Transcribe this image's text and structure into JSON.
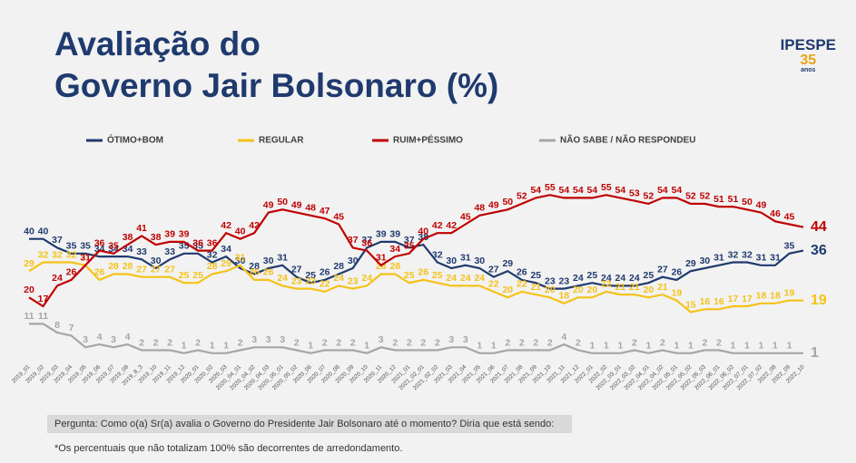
{
  "header": {
    "title_line1": "Avaliação do",
    "title_line2": "Governo Jair Bolsonaro (%)"
  },
  "logo": {
    "name": "IPESPE",
    "years": "35",
    "sub": "anos"
  },
  "chart_data": {
    "type": "line",
    "categories": [
      "2019_01",
      "2019_02",
      "2019_03",
      "2019_04",
      "2019_05",
      "2019_06",
      "2019_07",
      "2019_08",
      "2019_8_3",
      "2019_10",
      "2019_11",
      "2019_12",
      "2020_01",
      "2020_02",
      "2020_03",
      "2020_04_01",
      "2020_04_02",
      "2020_04_03",
      "2020_05_01",
      "2020_05_02",
      "2020_06",
      "2020_07",
      "2020_08",
      "2020_09",
      "2020_10",
      "2020_11",
      "2020_12",
      "2021_01",
      "2021_02_01",
      "2021_02_02",
      "2021_03",
      "2021_04",
      "2021_05",
      "2021_06",
      "2021_07",
      "2021_08",
      "2021_09",
      "2021_10",
      "2021_11",
      "2021_12",
      "2022_01",
      "2022_02",
      "2022_03_01",
      "2022_03_02",
      "2022_04_01",
      "2022_04_02",
      "2022_05_01",
      "2022_05_02",
      "2022_05_03",
      "2022_06_01",
      "2022_06_02",
      "2022_07_01",
      "2022_07_02",
      "2022_08",
      "2022_09",
      "2022_10"
    ],
    "ylim": [
      0,
      60
    ],
    "series": [
      {
        "name": "ÓTIMO+BOM",
        "color": "#1f3a6e",
        "values": [
          40,
          40,
          37,
          35,
          35,
          34,
          34,
          34,
          33,
          30,
          33,
          35,
          35,
          32,
          34,
          30,
          28,
          30,
          31,
          27,
          25,
          26,
          28,
          30,
          37,
          39,
          39,
          37,
          38,
          32,
          30,
          31,
          30,
          27,
          29,
          26,
          25,
          23,
          23,
          24,
          25,
          24,
          24,
          24,
          25,
          27,
          26,
          29,
          30,
          31,
          32,
          32,
          31,
          31,
          35,
          36
        ]
      },
      {
        "name": "REGULAR",
        "color": "#f5c218",
        "values": [
          29,
          32,
          32,
          32,
          31,
          26,
          28,
          28,
          27,
          27,
          27,
          25,
          25,
          28,
          29,
          31,
          26,
          26,
          24,
          23,
          23,
          22,
          24,
          23,
          24,
          28,
          28,
          25,
          26,
          25,
          24,
          24,
          24,
          22,
          20,
          22,
          21,
          20,
          18,
          20,
          20,
          22,
          21,
          21,
          20,
          21,
          19,
          15,
          16,
          16,
          17,
          17,
          18,
          18,
          19,
          19
        ]
      },
      {
        "name": "RUIM+PÉSSIMO",
        "color": "#c00000",
        "values": [
          20,
          17,
          24,
          26,
          31,
          36,
          35,
          38,
          41,
          38,
          39,
          39,
          36,
          36,
          42,
          40,
          42,
          49,
          50,
          49,
          48,
          47,
          45,
          37,
          36,
          31,
          34,
          35,
          40,
          42,
          42,
          45,
          48,
          49,
          50,
          52,
          54,
          55,
          54,
          54,
          54,
          55,
          54,
          53,
          52,
          54,
          54,
          52,
          52,
          51,
          51,
          50,
          49,
          46,
          45,
          44
        ]
      },
      {
        "name": "NÃO SABE / NÃO RESPONDEU",
        "color": "#a6a6a6",
        "values": [
          11,
          11,
          8,
          7,
          3,
          4,
          3,
          4,
          2,
          2,
          2,
          1,
          2,
          1,
          1,
          2,
          3,
          3,
          3,
          2,
          1,
          2,
          2,
          2,
          1,
          3,
          2,
          2,
          2,
          2,
          3,
          3,
          1,
          1,
          2,
          2,
          2,
          2,
          4,
          2,
          1,
          1,
          1,
          2,
          1,
          2,
          1,
          1,
          2,
          2,
          1,
          1,
          1,
          1,
          1,
          1
        ]
      }
    ]
  },
  "notes": {
    "question": "Pergunta: Como o(a) Sr(a) avalia o Governo do Presidente Jair Bolsonaro até o momento? Diria que está sendo:",
    "footnote": "*Os percentuais que não totalizam 100% são decorrentes de arredondamento."
  }
}
